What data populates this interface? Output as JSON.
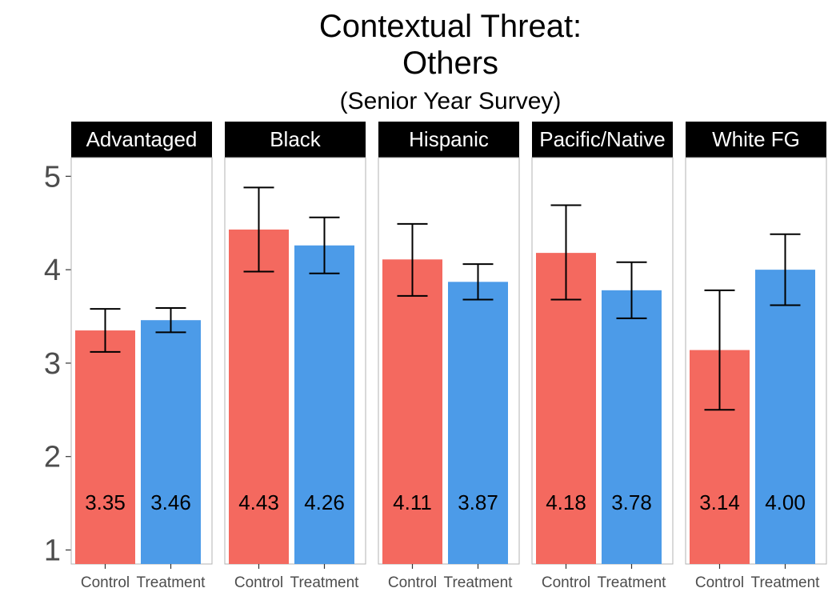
{
  "chart_data": {
    "type": "bar",
    "title": "Contextual Threat:",
    "title_line2": "Others",
    "subtitle": "(Senior Year Survey)",
    "xlabel": "",
    "ylabel": "",
    "ylim": [
      0.85,
      5.2
    ],
    "yticks": [
      "1",
      "2",
      "3",
      "4",
      "5"
    ],
    "grid": false,
    "legend": "none",
    "categories": [
      "Control",
      "Treatment"
    ],
    "colors": {
      "Control": "#f4695f",
      "Treatment": "#4c9be8"
    },
    "panels": [
      {
        "name": "Advantaged",
        "values": [
          3.35,
          3.46
        ],
        "labels": [
          "3.35",
          "3.46"
        ],
        "error_low": [
          3.12,
          3.33
        ],
        "error_high": [
          3.58,
          3.59
        ]
      },
      {
        "name": "Black",
        "values": [
          4.43,
          4.26
        ],
        "labels": [
          "4.43",
          "4.26"
        ],
        "error_low": [
          3.98,
          3.96
        ],
        "error_high": [
          4.88,
          4.56
        ]
      },
      {
        "name": "Hispanic",
        "values": [
          4.11,
          3.87
        ],
        "labels": [
          "4.11",
          "3.87"
        ],
        "error_low": [
          3.72,
          3.68
        ],
        "error_high": [
          4.49,
          4.06
        ]
      },
      {
        "name": "Pacific/Native",
        "values": [
          4.18,
          3.78
        ],
        "labels": [
          "4.18",
          "3.78"
        ],
        "error_low": [
          3.68,
          3.48
        ],
        "error_high": [
          4.69,
          4.08
        ]
      },
      {
        "name": "White FG",
        "values": [
          3.14,
          4.0
        ],
        "labels": [
          "3.14",
          "4.00"
        ],
        "error_low": [
          2.5,
          3.62
        ],
        "error_high": [
          3.78,
          4.38
        ]
      }
    ]
  }
}
